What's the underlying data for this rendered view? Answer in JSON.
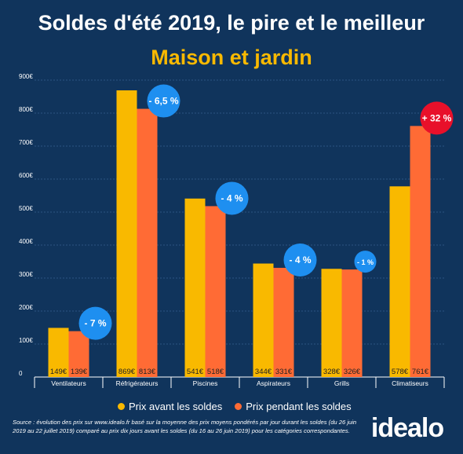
{
  "header": {
    "title": "Soldes d'été 2019, le pire et le meilleur",
    "subtitle": "Maison et jardin"
  },
  "colors": {
    "background": "#10345c",
    "before": "#f9b900",
    "during": "#ff6b35",
    "badge_blue": "#1e8ff0",
    "badge_red": "#e8102a"
  },
  "chart_data": {
    "type": "bar",
    "categories": [
      "Ventilateurs",
      "Réfrigérateurs",
      "Piscines",
      "Aspirateurs",
      "Grills",
      "Climatiseurs"
    ],
    "series": [
      {
        "name": "Prix avant les soldes",
        "values": [
          149,
          869,
          541,
          344,
          328,
          578
        ],
        "labels": [
          "149€",
          "869€",
          "541€",
          "344€",
          "328€",
          "578€"
        ]
      },
      {
        "name": "Prix pendant les soldes",
        "values": [
          139,
          813,
          518,
          331,
          326,
          761
        ],
        "labels": [
          "139€",
          "813€",
          "518€",
          "331€",
          "326€",
          "761€"
        ]
      }
    ],
    "changes": [
      "- 7 %",
      "- 6,5 %",
      "- 4 %",
      "- 4 %",
      "- 1 %",
      "+ 32 %"
    ],
    "change_kind": [
      "down",
      "down",
      "down",
      "down",
      "down",
      "up"
    ],
    "yticks": [
      "0",
      "100€",
      "200€",
      "300€",
      "400€",
      "500€",
      "600€",
      "700€",
      "800€",
      "900€"
    ],
    "ylim": [
      0,
      900
    ],
    "grid": true,
    "legend": "bottom"
  },
  "legend": {
    "before": "Prix avant les soldes",
    "during": "Prix pendant les soldes"
  },
  "source": "Source : évolution des prix sur www.idealo.fr basé sur la moyenne des prix moyens pondérés par jour durant les soldes (du 26 juin 2019 au 22 juillet 2019) comparé au prix dix jours avant les soldes (du 16 au 26 juin 2019) pour les catégories correspondantes.",
  "logo": "idealo"
}
